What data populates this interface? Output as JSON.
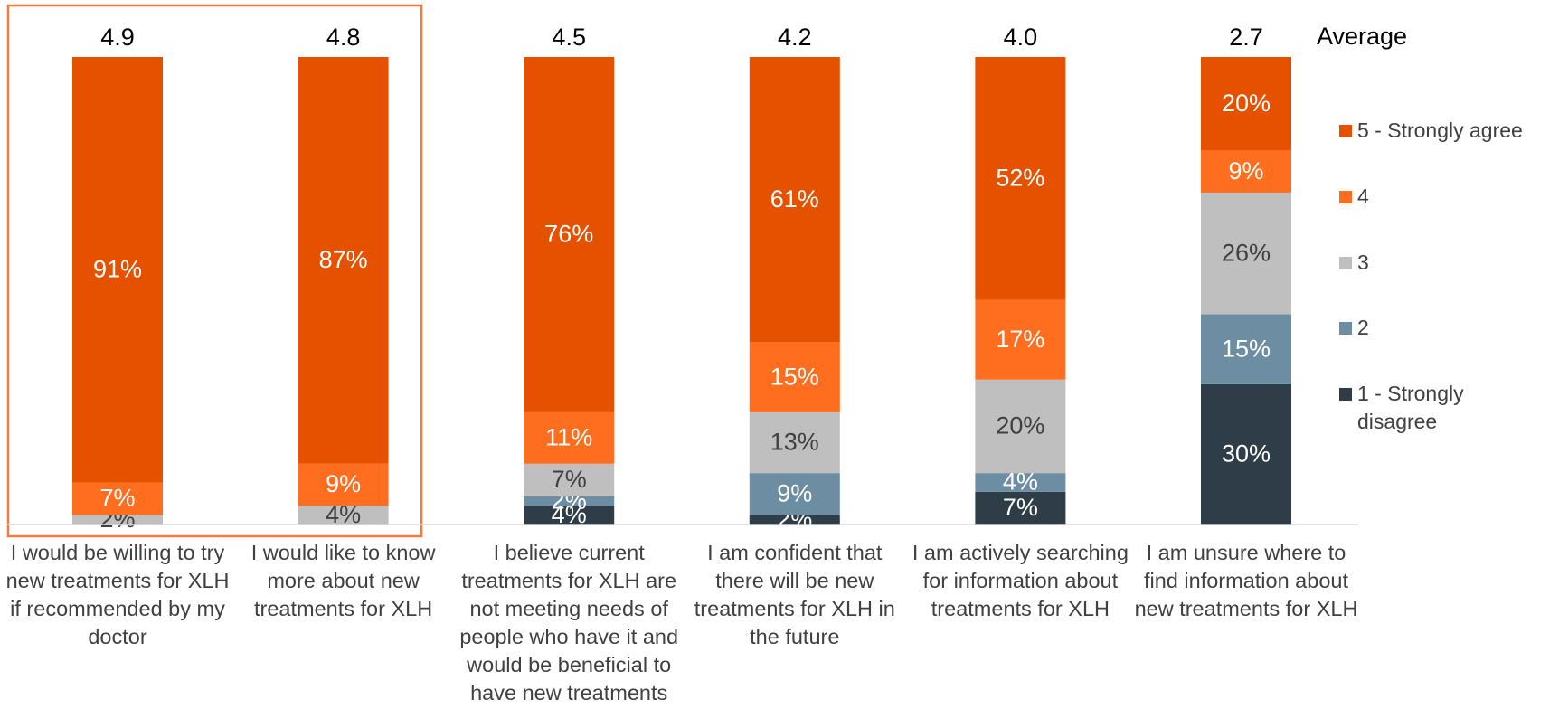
{
  "chart_data": {
    "type": "stacked_bar",
    "categories": [
      "I would be willing to try new treatments for XLH if recommended by my doctor",
      "I would like to know more about new treatments for XLH",
      "I believe current treatments for XLH are not meeting needs of people who have it and would be beneficial to have new treatments",
      "I am confident that there will be new treatments for XLH in the future",
      "I am actively searching for information about treatments for XLH",
      "I am unsure where to find information about new treatments for XLH"
    ],
    "series": [
      {
        "name": "1 - Strongly disagree",
        "color": "#2e3d48",
        "values": [
          0,
          0,
          4,
          2,
          7,
          30
        ],
        "value_labels": [
          null,
          null,
          "4%",
          "2%",
          "7%",
          "30%"
        ]
      },
      {
        "name": "2",
        "color": "#6d8ea2",
        "values": [
          0,
          0,
          2,
          9,
          4,
          15
        ],
        "value_labels": [
          null,
          null,
          "2%",
          "9%",
          "4%",
          "15%"
        ]
      },
      {
        "name": "3",
        "color": "#bfbfbf",
        "values": [
          2,
          4,
          7,
          13,
          20,
          26
        ],
        "value_labels": [
          "2%",
          "4%",
          "7%",
          "13%",
          "20%",
          "26%"
        ]
      },
      {
        "name": "4",
        "color": "#ff6d1f",
        "values": [
          7,
          9,
          11,
          15,
          17,
          9
        ],
        "value_labels": [
          "7%",
          "9%",
          "11%",
          "15%",
          "17%",
          "9%"
        ]
      },
      {
        "name": "5 - Strongly agree",
        "color": "#e65100",
        "values": [
          91,
          87,
          76,
          61,
          52,
          20
        ],
        "value_labels": [
          "91%",
          "87%",
          "76%",
          "61%",
          "52%",
          "20%"
        ]
      }
    ],
    "averages": {
      "label": "Average",
      "values": [
        4.9,
        4.8,
        4.5,
        4.2,
        4.0,
        2.7
      ],
      "value_labels": [
        "4.9",
        "4.8",
        "4.5",
        "4.2",
        "4.0",
        "2.7"
      ]
    },
    "ylim": [
      0,
      100
    ],
    "stacked": true
  }
}
